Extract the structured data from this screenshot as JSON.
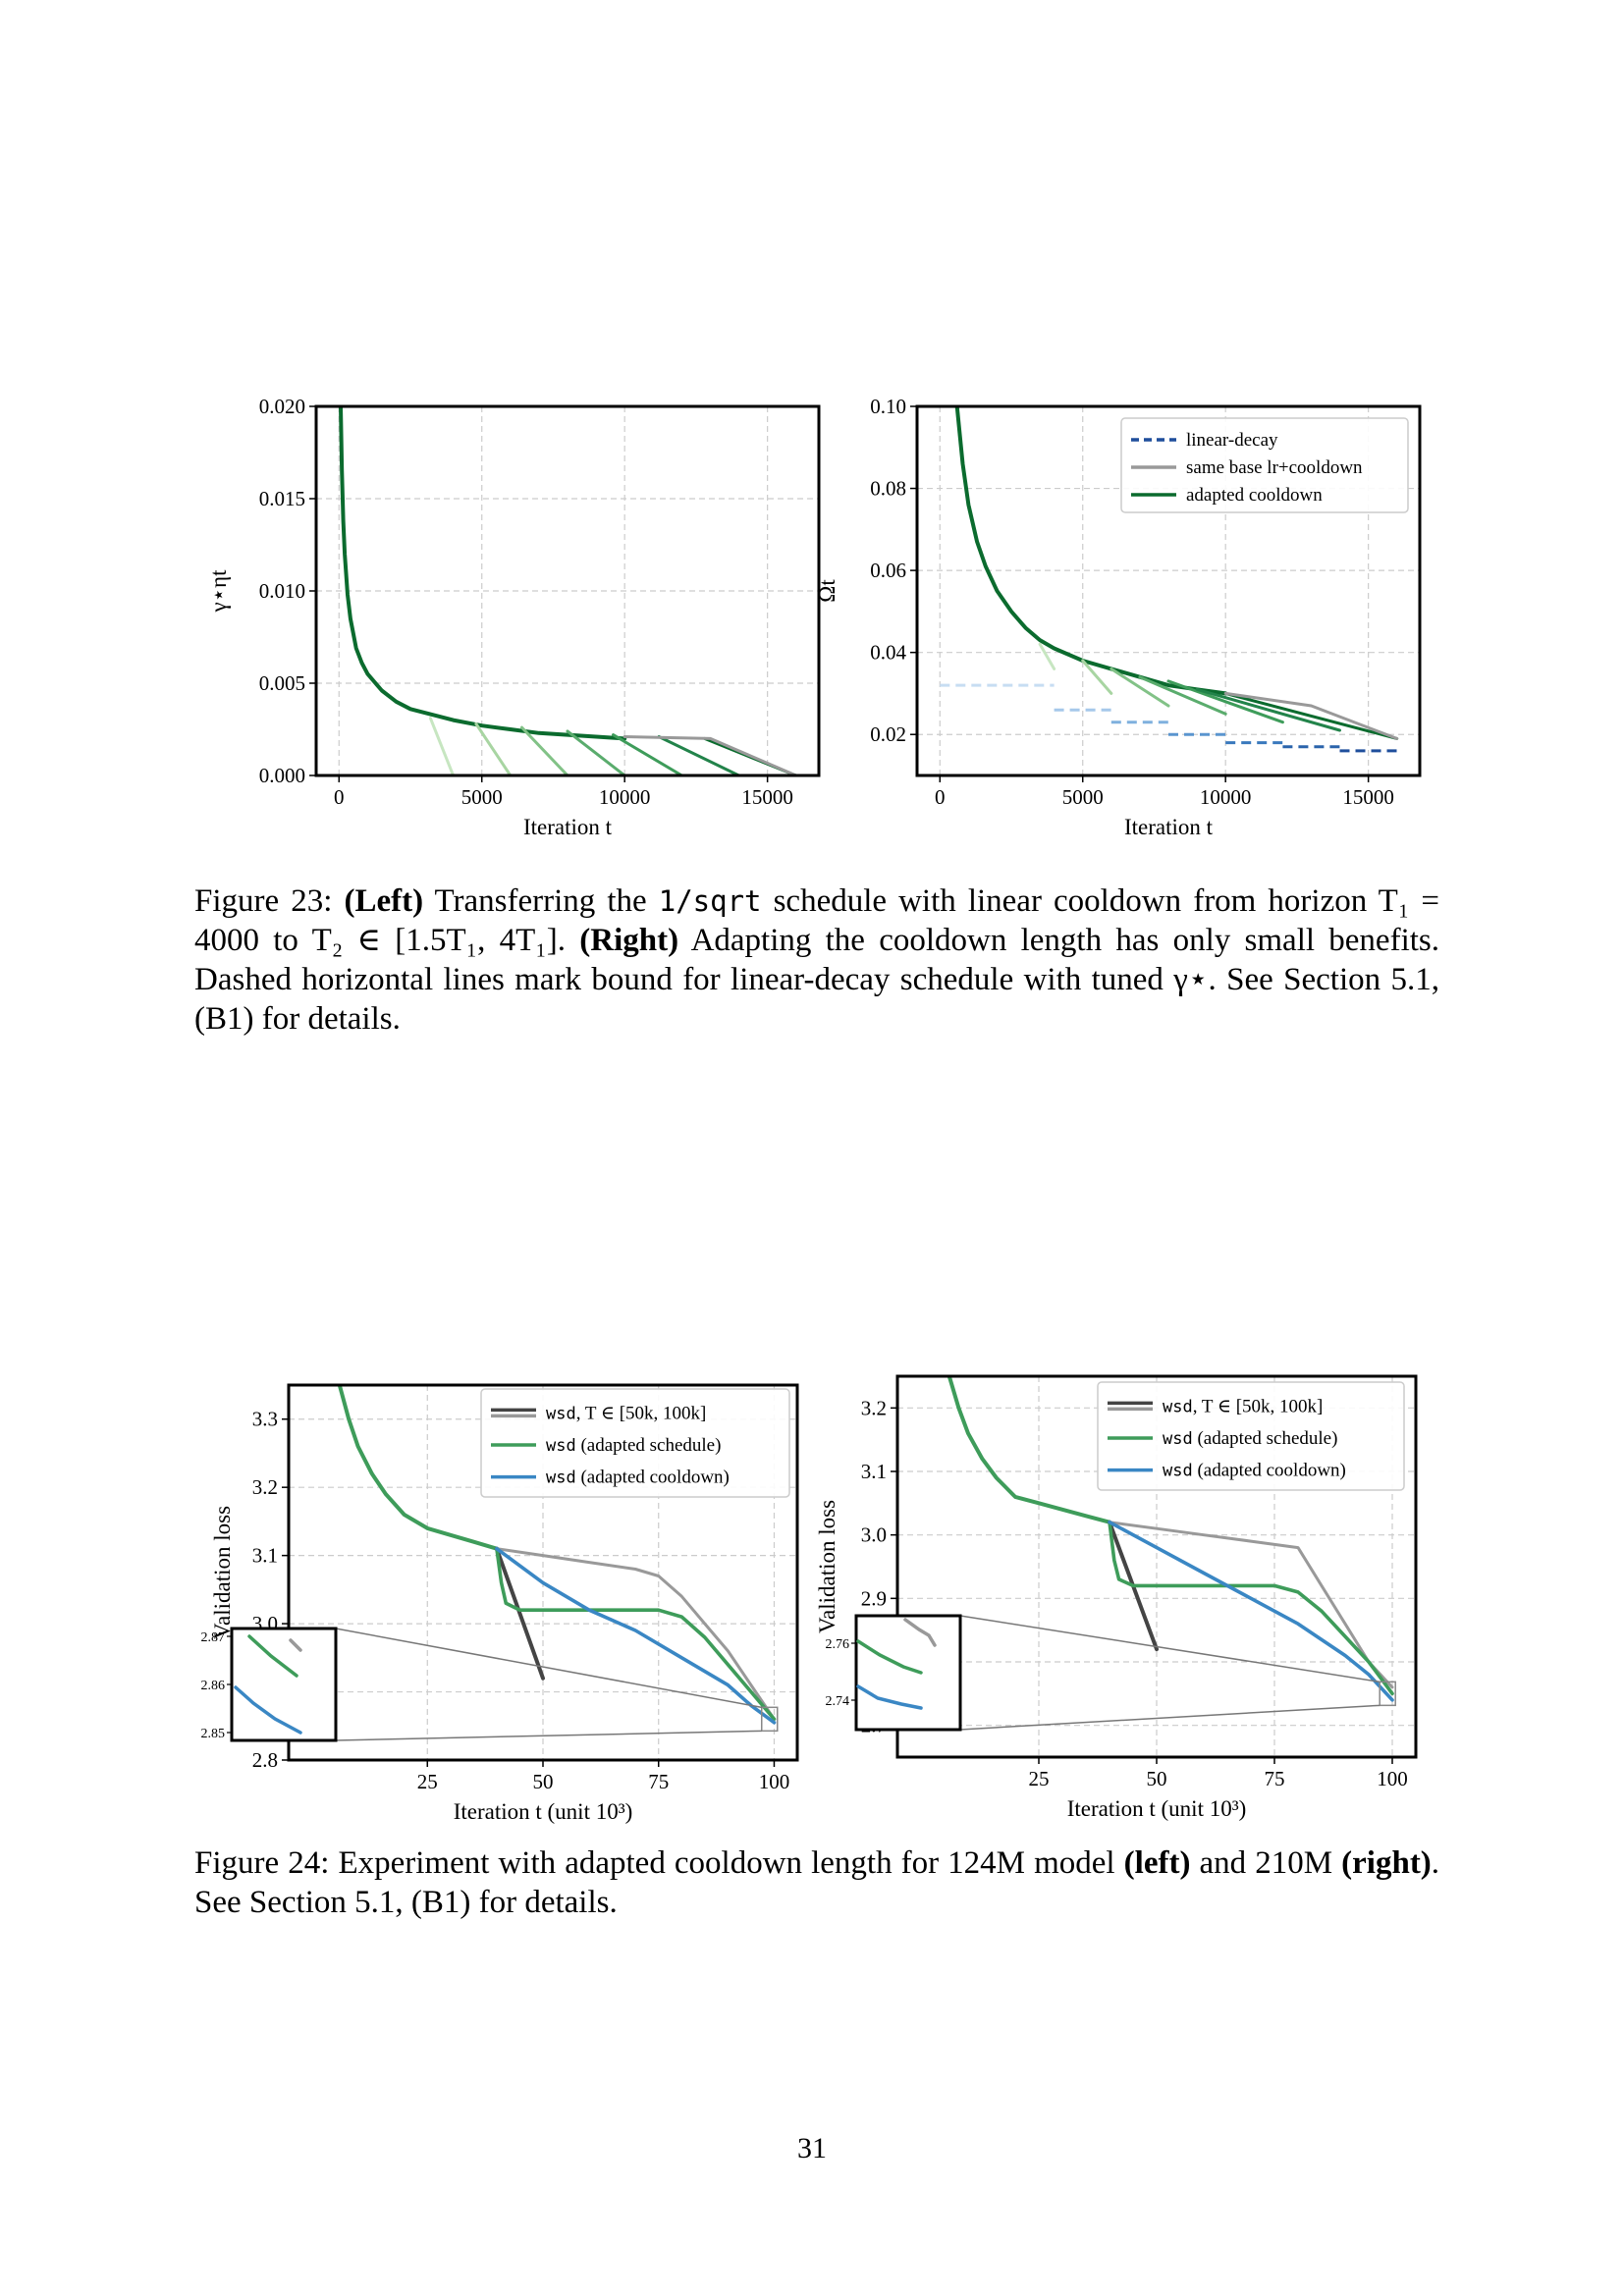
{
  "figure23": {
    "caption_label": "Figure 23:",
    "left_tag": "(Left)",
    "text1": "Transferring the",
    "code": "1/sqrt",
    "text2": "schedule with linear cooldown from horizon T₁ = 4000 to T₂ ∈ [1.5T₁, 4T₁].",
    "right_tag": "(Right)",
    "text3": "Adapting the cooldown length has only small benefits. Dashed horizontal lines mark bound for linear-decay schedule with tuned γ⋆. See Section 5.1, (B1) for details."
  },
  "figure24": {
    "caption_label": "Figure 24:",
    "text1": "Experiment with adapted cooldown length for 124M model",
    "left_tag": "(left)",
    "text2": "and 210M",
    "right_tag": "(right)",
    "text3": ". See Section 5.1, (B1) for details."
  },
  "page_number": "31",
  "colors": {
    "dark_green": "#0b6b2e",
    "mid_green": "#3e9c5a",
    "light_green": "#a8d5a2",
    "gray": "#999999",
    "dark_gray": "#444444",
    "blue": "#3a87c4",
    "dark_blue": "#1f4e9c",
    "light_blue": "#a6c8ea"
  },
  "chart_data": [
    {
      "id": "fig23_left",
      "type": "line",
      "xlabel": "Iteration t",
      "ylabel": "γ⋆ηt",
      "xlim": [
        -800,
        16800
      ],
      "ylim": [
        0,
        0.02
      ],
      "xticks": [
        0,
        5000,
        10000,
        15000
      ],
      "xtick_labels": [
        "0",
        "5000",
        "10000",
        "15000"
      ],
      "yticks": [
        0,
        0.005,
        0.01,
        0.015,
        0.02
      ],
      "ytick_labels": [
        "0.000",
        "0.005",
        "0.010",
        "0.015",
        "0.020"
      ],
      "grid": true,
      "series": [
        {
          "role": "base",
          "color": "#0b6b2e",
          "x": [
            60,
            100,
            150,
            200,
            300,
            400,
            600,
            800,
            1000,
            1500,
            2000,
            2500,
            3000,
            3500,
            4000,
            5000,
            6000,
            7000,
            8000,
            9000,
            10000
          ],
          "y": [
            0.02,
            0.0165,
            0.0138,
            0.012,
            0.0098,
            0.0085,
            0.0069,
            0.0061,
            0.0055,
            0.0046,
            0.004,
            0.0036,
            0.0034,
            0.0032,
            0.003,
            0.0027,
            0.0025,
            0.0023,
            0.0022,
            0.0021,
            0.002
          ]
        },
        {
          "role": "cooldown",
          "color": "#c7e6c1",
          "x": [
            3200,
            4000
          ],
          "y": [
            0.0031,
            0.0
          ]
        },
        {
          "role": "cooldown",
          "color": "#a8d5a2",
          "x": [
            4800,
            6000
          ],
          "y": [
            0.0028,
            0.0
          ]
        },
        {
          "role": "cooldown",
          "color": "#82c287",
          "x": [
            6400,
            8000
          ],
          "y": [
            0.0026,
            0.0
          ]
        },
        {
          "role": "cooldown",
          "color": "#5aac6d",
          "x": [
            8000,
            10000
          ],
          "y": [
            0.0024,
            0.0
          ]
        },
        {
          "role": "cooldown",
          "color": "#3e9c5a",
          "x": [
            9600,
            12000
          ],
          "y": [
            0.0022,
            0.0
          ]
        },
        {
          "role": "cooldown",
          "color": "#22834a",
          "x": [
            11200,
            14000
          ],
          "y": [
            0.0021,
            0.0
          ]
        },
        {
          "role": "cooldown",
          "color": "#0b6b2e",
          "x": [
            12800,
            16000
          ],
          "y": [
            0.002,
            0.0
          ]
        },
        {
          "role": "same_base",
          "color": "#999999",
          "x": [
            10000,
            13000,
            16000
          ],
          "y": [
            0.0021,
            0.002,
            0.0
          ]
        }
      ]
    },
    {
      "id": "fig23_right",
      "type": "line",
      "xlabel": "Iteration t",
      "ylabel": "Ωt",
      "xlim": [
        -800,
        16800
      ],
      "ylim": [
        0.01,
        0.1
      ],
      "xticks": [
        0,
        5000,
        10000,
        15000
      ],
      "xtick_labels": [
        "0",
        "5000",
        "10000",
        "15000"
      ],
      "yticks": [
        0.02,
        0.04,
        0.06,
        0.08,
        0.1
      ],
      "ytick_labels": [
        "0.02",
        "0.04",
        "0.06",
        "0.08",
        "0.10"
      ],
      "grid": true,
      "legend_position": "top-right",
      "legend": [
        {
          "label": "linear-decay",
          "color": "#1f4e9c",
          "dash": true
        },
        {
          "label": "same base lr+cooldown",
          "color": "#999999",
          "dash": false
        },
        {
          "label": "adapted cooldown",
          "color": "#0b6b2e",
          "dash": false
        }
      ],
      "series": [
        {
          "role": "base",
          "color": "#0b6b2e",
          "x": [
            600,
            800,
            1000,
            1300,
            1600,
            2000,
            2500,
            3000,
            3500,
            4000,
            5000,
            6000,
            7000,
            8000,
            9000,
            10000
          ],
          "y": [
            0.1,
            0.086,
            0.076,
            0.067,
            0.061,
            0.055,
            0.05,
            0.046,
            0.043,
            0.041,
            0.038,
            0.036,
            0.034,
            0.032,
            0.031,
            0.03
          ]
        },
        {
          "role": "cooldown",
          "color": "#c7e6c1",
          "x": [
            3500,
            4000
          ],
          "y": [
            0.042,
            0.036
          ]
        },
        {
          "role": "cooldown",
          "color": "#a8d5a2",
          "x": [
            5000,
            6000
          ],
          "y": [
            0.038,
            0.03
          ]
        },
        {
          "role": "cooldown",
          "color": "#82c287",
          "x": [
            6000,
            8000
          ],
          "y": [
            0.036,
            0.027
          ]
        },
        {
          "role": "cooldown",
          "color": "#5aac6d",
          "x": [
            7000,
            10000
          ],
          "y": [
            0.034,
            0.025
          ]
        },
        {
          "role": "cooldown",
          "color": "#3e9c5a",
          "x": [
            8000,
            12000
          ],
          "y": [
            0.033,
            0.023
          ]
        },
        {
          "role": "cooldown",
          "color": "#22834a",
          "x": [
            9000,
            14000
          ],
          "y": [
            0.031,
            0.021
          ]
        },
        {
          "role": "cooldown",
          "color": "#0b6b2e",
          "x": [
            10000,
            16000
          ],
          "y": [
            0.03,
            0.019
          ]
        },
        {
          "role": "same_base",
          "color": "#999999",
          "x": [
            10000,
            13000,
            16000
          ],
          "y": [
            0.03,
            0.027,
            0.019
          ]
        },
        {
          "role": "hline",
          "color": "#c7ddf2",
          "x": [
            0,
            4000
          ],
          "y": [
            0.032,
            0.032
          ]
        },
        {
          "role": "hline",
          "color": "#a6c8ea",
          "x": [
            4000,
            6000
          ],
          "y": [
            0.026,
            0.026
          ]
        },
        {
          "role": "hline",
          "color": "#7fb0de",
          "x": [
            6000,
            8000
          ],
          "y": [
            0.023,
            0.023
          ]
        },
        {
          "role": "hline",
          "color": "#5a95cf",
          "x": [
            8000,
            10000
          ],
          "y": [
            0.02,
            0.02
          ]
        },
        {
          "role": "hline",
          "color": "#3a79bd",
          "x": [
            10000,
            12000
          ],
          "y": [
            0.018,
            0.018
          ]
        },
        {
          "role": "hline",
          "color": "#2a63ab",
          "x": [
            12000,
            14000
          ],
          "y": [
            0.017,
            0.017
          ]
        },
        {
          "role": "hline",
          "color": "#1f4e9c",
          "x": [
            14000,
            16000
          ],
          "y": [
            0.016,
            0.016
          ]
        }
      ]
    },
    {
      "id": "fig24_left",
      "type": "line",
      "xlabel": "Iteration t (unit 10³)",
      "ylabel": "Validation loss",
      "xlim": [
        -5,
        105
      ],
      "ylim": [
        2.8,
        3.35
      ],
      "xticks": [
        25,
        50,
        75,
        100
      ],
      "xtick_labels": [
        "25",
        "50",
        "75",
        "100"
      ],
      "yticks": [
        2.8,
        2.9,
        3.0,
        3.1,
        3.2,
        3.3
      ],
      "ytick_labels": [
        "2.8",
        "2.9",
        "3.0",
        "3.1",
        "3.2",
        "3.3"
      ],
      "grid": true,
      "legend_position": "top-right",
      "legend": [
        {
          "code": "wsd",
          "label": ", T ∈ [50k, 100k]",
          "colors": [
            "#444444",
            "#999999"
          ]
        },
        {
          "code": "wsd",
          "label": " (adapted schedule)",
          "colors": [
            "#3e9c5a"
          ]
        },
        {
          "code": "wsd",
          "label": " (adapted cooldown)",
          "colors": [
            "#3a87c4"
          ]
        }
      ],
      "inset": {
        "yticks": [
          "2.87",
          "2.86",
          "2.85"
        ]
      },
      "series": [
        {
          "role": "base",
          "color": "#3e9c5a",
          "x": [
            6,
            8,
            10,
            13,
            16,
            20,
            25,
            30,
            35,
            40
          ],
          "y": [
            3.35,
            3.3,
            3.26,
            3.22,
            3.19,
            3.16,
            3.14,
            3.13,
            3.12,
            3.11
          ]
        },
        {
          "role": "wsd_const",
          "color": "#999999",
          "x": [
            40,
            50,
            60,
            70,
            75,
            80,
            85,
            90,
            95,
            100
          ],
          "y": [
            3.11,
            3.1,
            3.09,
            3.08,
            3.07,
            3.04,
            3.0,
            2.96,
            2.91,
            2.86
          ]
        },
        {
          "role": "wsd_50k",
          "color": "#444444",
          "x": [
            40,
            50
          ],
          "y": [
            3.11,
            2.92
          ]
        },
        {
          "role": "adapted_schedule",
          "color": "#3e9c5a",
          "x": [
            40,
            41,
            42,
            45,
            50,
            60,
            70,
            75,
            80,
            85,
            90,
            95,
            100
          ],
          "y": [
            3.11,
            3.06,
            3.03,
            3.02,
            3.02,
            3.02,
            3.02,
            3.02,
            3.01,
            2.98,
            2.94,
            2.9,
            2.86
          ]
        },
        {
          "role": "adapted_cooldown",
          "color": "#3a87c4",
          "x": [
            40,
            50,
            60,
            70,
            80,
            90,
            95,
            100
          ],
          "y": [
            3.11,
            3.06,
            3.02,
            2.99,
            2.95,
            2.91,
            2.88,
            2.855
          ]
        }
      ]
    },
    {
      "id": "fig24_right",
      "type": "line",
      "xlabel": "Iteration t (unit 10³)",
      "ylabel": "Validation loss",
      "xlim": [
        -5,
        105
      ],
      "ylim": [
        2.65,
        3.25
      ],
      "xticks": [
        25,
        50,
        75,
        100
      ],
      "xtick_labels": [
        "25",
        "50",
        "75",
        "100"
      ],
      "yticks": [
        2.7,
        2.8,
        2.9,
        3.0,
        3.1,
        3.2
      ],
      "ytick_labels": [
        "2.7",
        "2.8",
        "2.9",
        "3.0",
        "3.1",
        "3.2"
      ],
      "grid": true,
      "legend_position": "top-right",
      "legend": [
        {
          "code": "wsd",
          "label": ", T ∈ [50k, 100k]",
          "colors": [
            "#444444",
            "#999999"
          ]
        },
        {
          "code": "wsd",
          "label": " (adapted schedule)",
          "colors": [
            "#3e9c5a"
          ]
        },
        {
          "code": "wsd",
          "label": " (adapted cooldown)",
          "colors": [
            "#3a87c4"
          ]
        }
      ],
      "inset": {
        "yticks": [
          "2.76",
          "2.74"
        ]
      },
      "series": [
        {
          "role": "base",
          "color": "#3e9c5a",
          "x": [
            6,
            8,
            10,
            13,
            16,
            20,
            25,
            30,
            35,
            40
          ],
          "y": [
            3.25,
            3.2,
            3.16,
            3.12,
            3.09,
            3.06,
            3.05,
            3.04,
            3.03,
            3.02
          ]
        },
        {
          "role": "wsd_const",
          "color": "#999999",
          "x": [
            40,
            50,
            60,
            70,
            80,
            85,
            90,
            95,
            100
          ],
          "y": [
            3.02,
            3.01,
            3.0,
            2.99,
            2.98,
            2.92,
            2.86,
            2.8,
            2.76
          ]
        },
        {
          "role": "wsd_50k",
          "color": "#444444",
          "x": [
            40,
            50
          ],
          "y": [
            3.02,
            2.82
          ]
        },
        {
          "role": "adapted_schedule",
          "color": "#3e9c5a",
          "x": [
            40,
            41,
            42,
            45,
            50,
            60,
            70,
            75,
            80,
            85,
            90,
            95,
            100
          ],
          "y": [
            3.02,
            2.96,
            2.93,
            2.92,
            2.92,
            2.92,
            2.92,
            2.92,
            2.91,
            2.88,
            2.84,
            2.8,
            2.75
          ]
        },
        {
          "role": "adapted_cooldown",
          "color": "#3a87c4",
          "x": [
            40,
            50,
            60,
            70,
            80,
            90,
            95,
            100
          ],
          "y": [
            3.02,
            2.98,
            2.94,
            2.9,
            2.86,
            2.81,
            2.78,
            2.74
          ]
        }
      ]
    }
  ]
}
